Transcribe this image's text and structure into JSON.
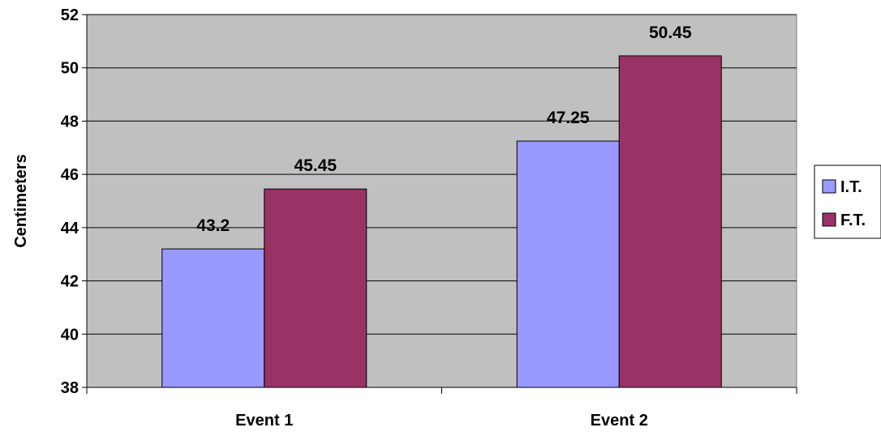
{
  "chart_data": {
    "type": "bar",
    "title": "",
    "xlabel": "",
    "ylabel": "Centimeters",
    "ylim": [
      38,
      52
    ],
    "yticks": [
      38,
      40,
      42,
      44,
      46,
      48,
      50,
      52
    ],
    "categories": [
      "Event 1",
      "Event 2"
    ],
    "series": [
      {
        "name": "I.T.",
        "values": [
          43.2,
          47.25
        ],
        "color": "#9999FF"
      },
      {
        "name": "F.T.",
        "values": [
          45.45,
          50.45
        ],
        "color": "#993366"
      }
    ],
    "data_labels": [
      [
        "43.2",
        "47.25"
      ],
      [
        "45.45",
        "50.45"
      ]
    ],
    "grid": true,
    "legend": "right",
    "plot_background": "#C0C0C0"
  }
}
